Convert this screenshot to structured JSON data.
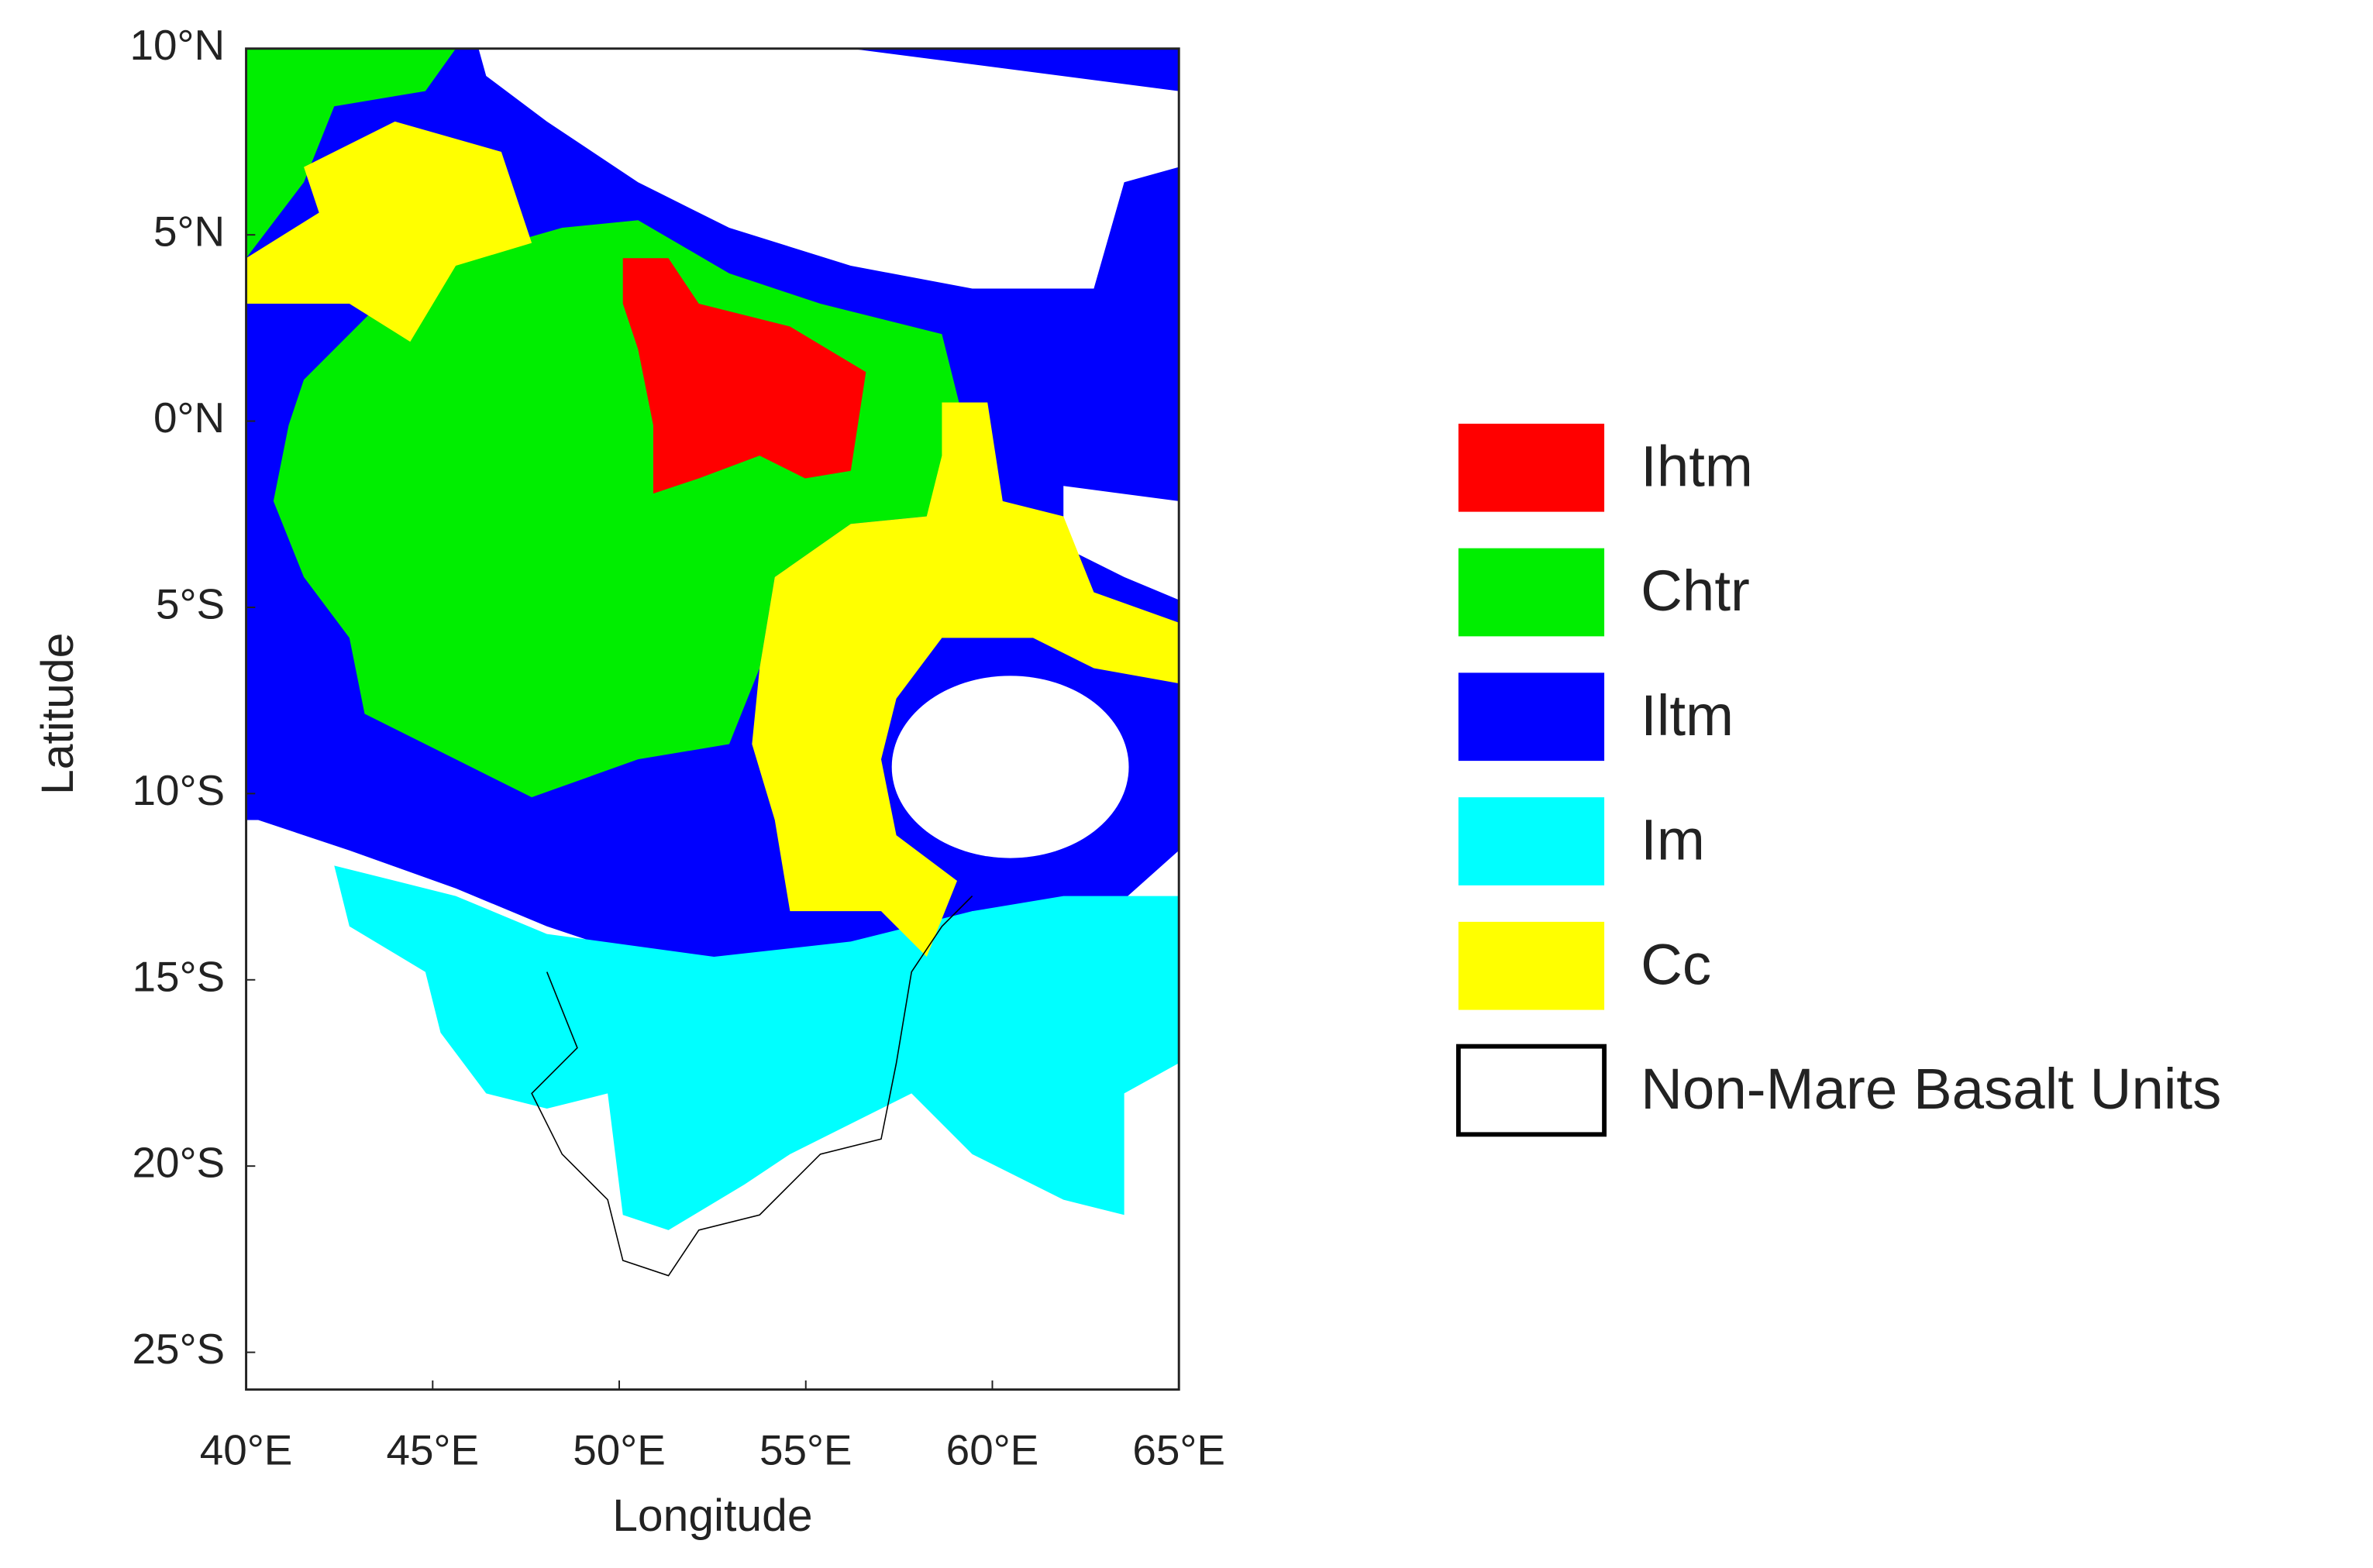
{
  "map": {
    "x_label": "Longitude",
    "y_label": "Latitude",
    "xlim": [
      40,
      65
    ],
    "ylim": [
      -26,
      10
    ],
    "xticks": [
      {
        "value": 40,
        "label": "40°E"
      },
      {
        "value": 45,
        "label": "45°E"
      },
      {
        "value": 50,
        "label": "50°E"
      },
      {
        "value": 55,
        "label": "55°E"
      },
      {
        "value": 60,
        "label": "60°E"
      },
      {
        "value": 65,
        "label": "65°E"
      }
    ],
    "yticks": [
      {
        "value": 10,
        "label": "10°N"
      },
      {
        "value": 5,
        "label": "5°N"
      },
      {
        "value": 0,
        "label": "0°N"
      },
      {
        "value": -5,
        "label": "5°S"
      },
      {
        "value": -10,
        "label": "10°S"
      },
      {
        "value": -15,
        "label": "15°S"
      },
      {
        "value": -20,
        "label": "20°S"
      },
      {
        "value": -25,
        "label": "25°S"
      }
    ],
    "legend": [
      {
        "name": "Ihtm",
        "color": "#ff0000"
      },
      {
        "name": "Chtr",
        "color": "#00ee00"
      },
      {
        "name": "Iltm",
        "color": "#0000ff"
      },
      {
        "name": "Im",
        "color": "#00ffff"
      },
      {
        "name": "Cc",
        "color": "#ffff00"
      },
      {
        "name": "Non-Mare Basalt Units",
        "color": "#ffffff"
      }
    ]
  }
}
